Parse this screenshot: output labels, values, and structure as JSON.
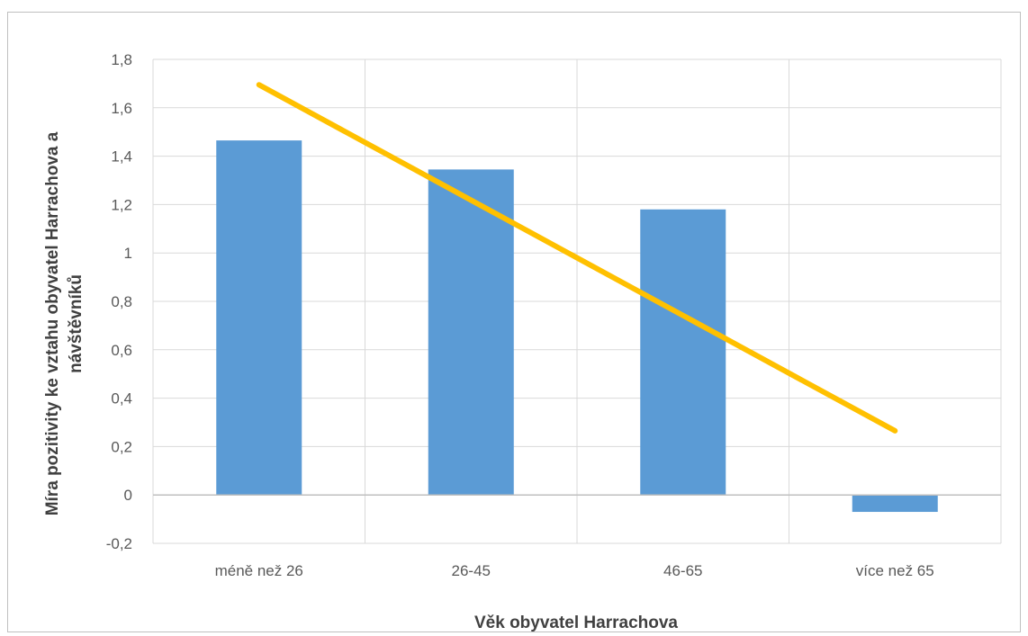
{
  "chart_data": {
    "type": "bar",
    "xlabel": "Věk obyvatel Harrachova",
    "ylabel_lines": [
      "Míra pozitivity ke vztahu obyvatel Harrachova a",
      "návštěvníků"
    ],
    "categories": [
      "méně než 26",
      "26-45",
      "46-65",
      "více než 65"
    ],
    "values": [
      1.465,
      1.345,
      1.18,
      -0.07
    ],
    "trendline": {
      "type": "linear",
      "color": "#FFC000",
      "start_value": 1.695,
      "end_value": 0.265
    },
    "ylim": [
      -0.2,
      1.8
    ],
    "yticks": [
      -0.2,
      0,
      0.2,
      0.4,
      0.6,
      0.8,
      1,
      1.2,
      1.4,
      1.6,
      1.8
    ],
    "ytick_labels": [
      "-0,2",
      "0",
      "0,2",
      "0,4",
      "0,6",
      "0,8",
      "1",
      "1,2",
      "1,4",
      "1,6",
      "1,8"
    ],
    "grid": true,
    "legend": "none",
    "bar_color": "#5B9BD5",
    "grid_color": "#D9D9D9"
  }
}
